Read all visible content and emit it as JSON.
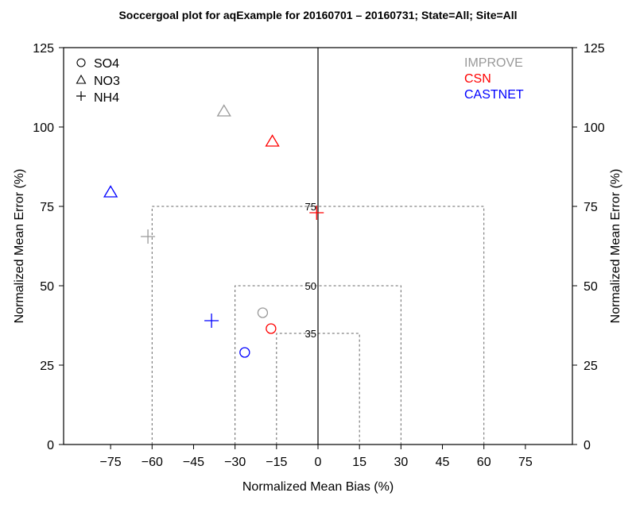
{
  "chart_data": {
    "type": "scatter",
    "title": "Soccergoal plot for aqExample for 20160701 – 20160731; State=All; Site=All",
    "xlabel": "Normalized Mean Bias (%)",
    "ylabel": "Normalized Mean Error (%)",
    "ylabel_right": "Normalized Mean Error (%)",
    "xlim": [
      -92,
      92
    ],
    "ylim": [
      0,
      125
    ],
    "x_ticks": [
      -75,
      -60,
      -45,
      -30,
      -15,
      0,
      15,
      30,
      45,
      60,
      75
    ],
    "x_tick_labels": [
      "−75",
      "−60",
      "−45",
      "−30",
      "−15",
      "0",
      "15",
      "30",
      "45",
      "60",
      "75"
    ],
    "y_ticks": [
      0,
      25,
      50,
      75,
      100,
      125
    ],
    "y_tick_labels": [
      "0",
      "25",
      "50",
      "75",
      "100",
      "125"
    ],
    "zero_line": 0,
    "goal_boxes": [
      {
        "label": "35",
        "bias": 15,
        "error": 35
      },
      {
        "label": "50",
        "bias": 30,
        "error": 50
      },
      {
        "label": "75",
        "bias": 60,
        "error": 75
      }
    ],
    "marker_legend": [
      {
        "label": "SO4",
        "marker": "circle"
      },
      {
        "label": "NO3",
        "marker": "triangle"
      },
      {
        "label": "NH4",
        "marker": "plus"
      }
    ],
    "network_legend": [
      {
        "label": "IMPROVE",
        "color": "#999999"
      },
      {
        "label": "CSN",
        "color": "#ff0000"
      },
      {
        "label": "CASTNET",
        "color": "#0000ff"
      }
    ],
    "series": [
      {
        "name": "IMPROVE",
        "color": "#999999",
        "points": [
          {
            "species": "SO4",
            "marker": "circle",
            "x": -20,
            "y": 41.5
          },
          {
            "species": "NO3",
            "marker": "triangle",
            "x": -34,
            "y": 105
          },
          {
            "species": "NH4",
            "marker": "plus",
            "x": -61.5,
            "y": 65.5
          }
        ]
      },
      {
        "name": "CSN",
        "color": "#ff0000",
        "points": [
          {
            "species": "SO4",
            "marker": "circle",
            "x": -17,
            "y": 36.5
          },
          {
            "species": "NO3",
            "marker": "triangle",
            "x": -16.5,
            "y": 95.5
          },
          {
            "species": "NH4",
            "marker": "plus",
            "x": -0.5,
            "y": 73
          }
        ]
      },
      {
        "name": "CASTNET",
        "color": "#0000ff",
        "points": [
          {
            "species": "SO4",
            "marker": "circle",
            "x": -26.5,
            "y": 29
          },
          {
            "species": "NO3",
            "marker": "triangle",
            "x": -75,
            "y": 79.5
          },
          {
            "species": "NH4",
            "marker": "plus",
            "x": -38.5,
            "y": 39
          }
        ]
      }
    ]
  }
}
